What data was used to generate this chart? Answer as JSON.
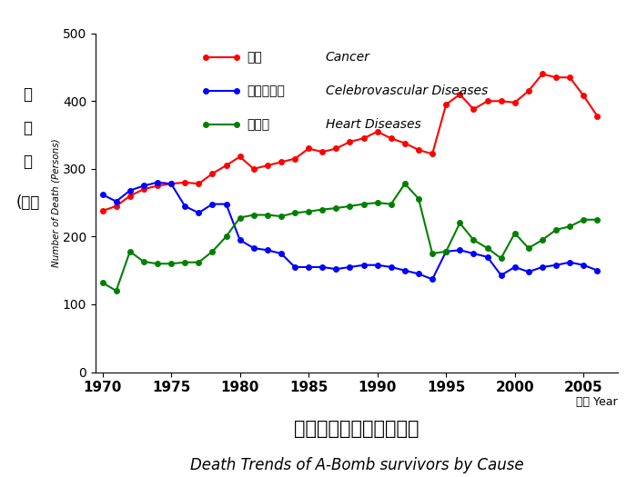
{
  "years": [
    1970,
    1971,
    1972,
    1973,
    1974,
    1975,
    1976,
    1977,
    1978,
    1979,
    1980,
    1981,
    1982,
    1983,
    1984,
    1985,
    1986,
    1987,
    1988,
    1989,
    1990,
    1991,
    1992,
    1993,
    1994,
    1995,
    1996,
    1997,
    1998,
    1999,
    2000,
    2001,
    2002,
    2003,
    2004,
    2005,
    2006
  ],
  "cancer": [
    238,
    245,
    260,
    270,
    275,
    278,
    280,
    278,
    293,
    305,
    318,
    300,
    305,
    310,
    315,
    330,
    325,
    330,
    340,
    345,
    355,
    345,
    338,
    328,
    322,
    395,
    410,
    388,
    400,
    400,
    398,
    415,
    440,
    435,
    435,
    408,
    378
  ],
  "cerebrovascular": [
    262,
    252,
    268,
    275,
    280,
    278,
    245,
    235,
    248,
    248,
    195,
    183,
    180,
    175,
    155,
    155,
    155,
    152,
    155,
    158,
    158,
    155,
    150,
    145,
    137,
    178,
    180,
    175,
    170,
    143,
    155,
    148,
    155,
    158,
    162,
    158,
    150
  ],
  "heart": [
    132,
    120,
    178,
    163,
    160,
    160,
    162,
    162,
    178,
    200,
    228,
    232,
    232,
    230,
    235,
    237,
    240,
    242,
    245,
    248,
    250,
    248,
    278,
    256,
    175,
    178,
    220,
    195,
    183,
    168,
    205,
    183,
    195,
    210,
    215,
    225,
    225
  ],
  "cancer_color": "#ff0000",
  "cerebrovascular_color": "#0000ff",
  "heart_color": "#008000",
  "title_japanese": "死因別死亡数の年次推移",
  "title_english": "Death Trends of A-Bomb survivors by Cause",
  "ylabel_chars": [
    "死",
    "亡",
    "数",
    "(人）"
  ],
  "ylabel_english": "Number of Death (Persons)",
  "xlabel_label": "年度 Year",
  "legend_cancer_jp": "がん",
  "legend_cancer_en": "Cancer",
  "legend_cerebro_jp": "脳血管疾患",
  "legend_cerebro_en": "Celebrovascular Diseases",
  "legend_heart_jp": "心疾患",
  "legend_heart_en": "Heart Diseases",
  "ylim": [
    0,
    500
  ],
  "yticks": [
    0,
    100,
    200,
    300,
    400,
    500
  ],
  "xlim": [
    1969.5,
    2007.5
  ],
  "xticks": [
    1970,
    1975,
    1980,
    1985,
    1990,
    1995,
    2000,
    2005
  ],
  "background_color": "#ffffff",
  "marker_size": 4,
  "line_width": 1.5
}
